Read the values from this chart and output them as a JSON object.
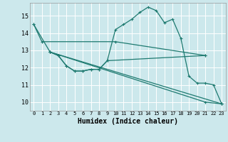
{
  "xlabel": "Humidex (Indice chaleur)",
  "bg_color": "#cce8ec",
  "grid_color": "#ffffff",
  "line_color": "#1e7a70",
  "xlim": [
    -0.5,
    23.5
  ],
  "ylim": [
    9.5,
    15.75
  ],
  "yticks": [
    10,
    11,
    12,
    13,
    14,
    15
  ],
  "xticks": [
    0,
    1,
    2,
    3,
    4,
    5,
    6,
    7,
    8,
    9,
    10,
    11,
    12,
    13,
    14,
    15,
    16,
    17,
    18,
    19,
    20,
    21,
    22,
    23
  ],
  "line1_x": [
    0,
    1,
    10,
    21
  ],
  "line1_y": [
    14.5,
    13.5,
    13.5,
    12.7
  ],
  "line2_x": [
    0,
    2,
    3,
    4,
    5,
    6,
    7,
    8,
    9,
    10,
    11,
    12,
    13,
    14,
    15,
    16,
    17,
    18,
    19,
    20,
    21,
    22,
    23
  ],
  "line2_y": [
    14.5,
    12.9,
    12.7,
    12.1,
    11.8,
    11.8,
    11.9,
    11.9,
    12.4,
    14.2,
    14.5,
    14.8,
    15.2,
    15.5,
    15.3,
    14.6,
    14.8,
    13.7,
    11.5,
    11.1,
    11.1,
    11.0,
    9.9
  ],
  "line3_x": [
    2,
    3,
    4,
    5,
    6,
    7,
    8,
    9,
    21
  ],
  "line3_y": [
    12.9,
    12.7,
    12.1,
    11.8,
    11.8,
    11.9,
    11.9,
    12.4,
    12.7
  ],
  "line4_x": [
    2,
    23
  ],
  "line4_y": [
    12.9,
    9.9
  ],
  "line5_x": [
    2,
    21,
    23
  ],
  "line5_y": [
    12.9,
    10.0,
    9.9
  ]
}
